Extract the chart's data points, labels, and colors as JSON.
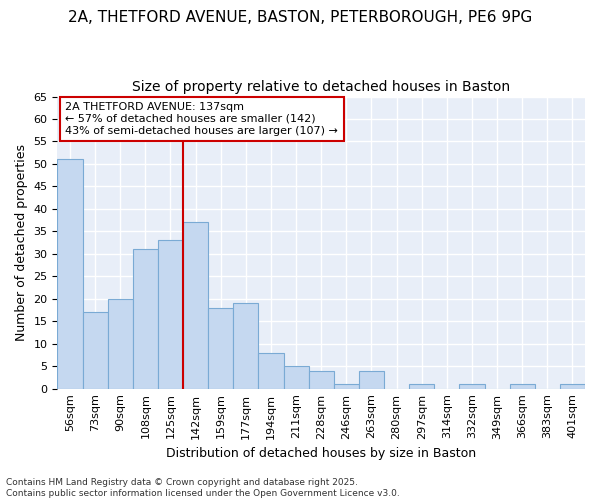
{
  "title_line1": "2A, THETFORD AVENUE, BASTON, PETERBOROUGH, PE6 9PG",
  "title_line2": "Size of property relative to detached houses in Baston",
  "xlabel": "Distribution of detached houses by size in Baston",
  "ylabel": "Number of detached properties",
  "categories": [
    "56sqm",
    "73sqm",
    "90sqm",
    "108sqm",
    "125sqm",
    "142sqm",
    "159sqm",
    "177sqm",
    "194sqm",
    "211sqm",
    "228sqm",
    "246sqm",
    "263sqm",
    "280sqm",
    "297sqm",
    "314sqm",
    "332sqm",
    "349sqm",
    "366sqm",
    "383sqm",
    "401sqm"
  ],
  "values": [
    51,
    17,
    20,
    31,
    33,
    37,
    18,
    19,
    8,
    5,
    4,
    1,
    4,
    0,
    1,
    0,
    1,
    0,
    1,
    0,
    1
  ],
  "bar_color": "#c5d8f0",
  "bar_edge_color": "#7aaad4",
  "vline_color": "#cc0000",
  "vline_x_index": 5,
  "annotation_text": "2A THETFORD AVENUE: 137sqm\n← 57% of detached houses are smaller (142)\n43% of semi-detached houses are larger (107) →",
  "annotation_box_color": "#ffffff",
  "annotation_box_edge_color": "#cc0000",
  "ylim": [
    0,
    65
  ],
  "yticks": [
    0,
    5,
    10,
    15,
    20,
    25,
    30,
    35,
    40,
    45,
    50,
    55,
    60,
    65
  ],
  "plot_bg_color": "#e8eef8",
  "fig_bg_color": "#ffffff",
  "grid_color": "#ffffff",
  "footer_text": "Contains HM Land Registry data © Crown copyright and database right 2025.\nContains public sector information licensed under the Open Government Licence v3.0.",
  "title_fontsize": 11,
  "subtitle_fontsize": 10,
  "axis_label_fontsize": 9,
  "tick_fontsize": 8,
  "annotation_fontsize": 8,
  "footer_fontsize": 6.5
}
